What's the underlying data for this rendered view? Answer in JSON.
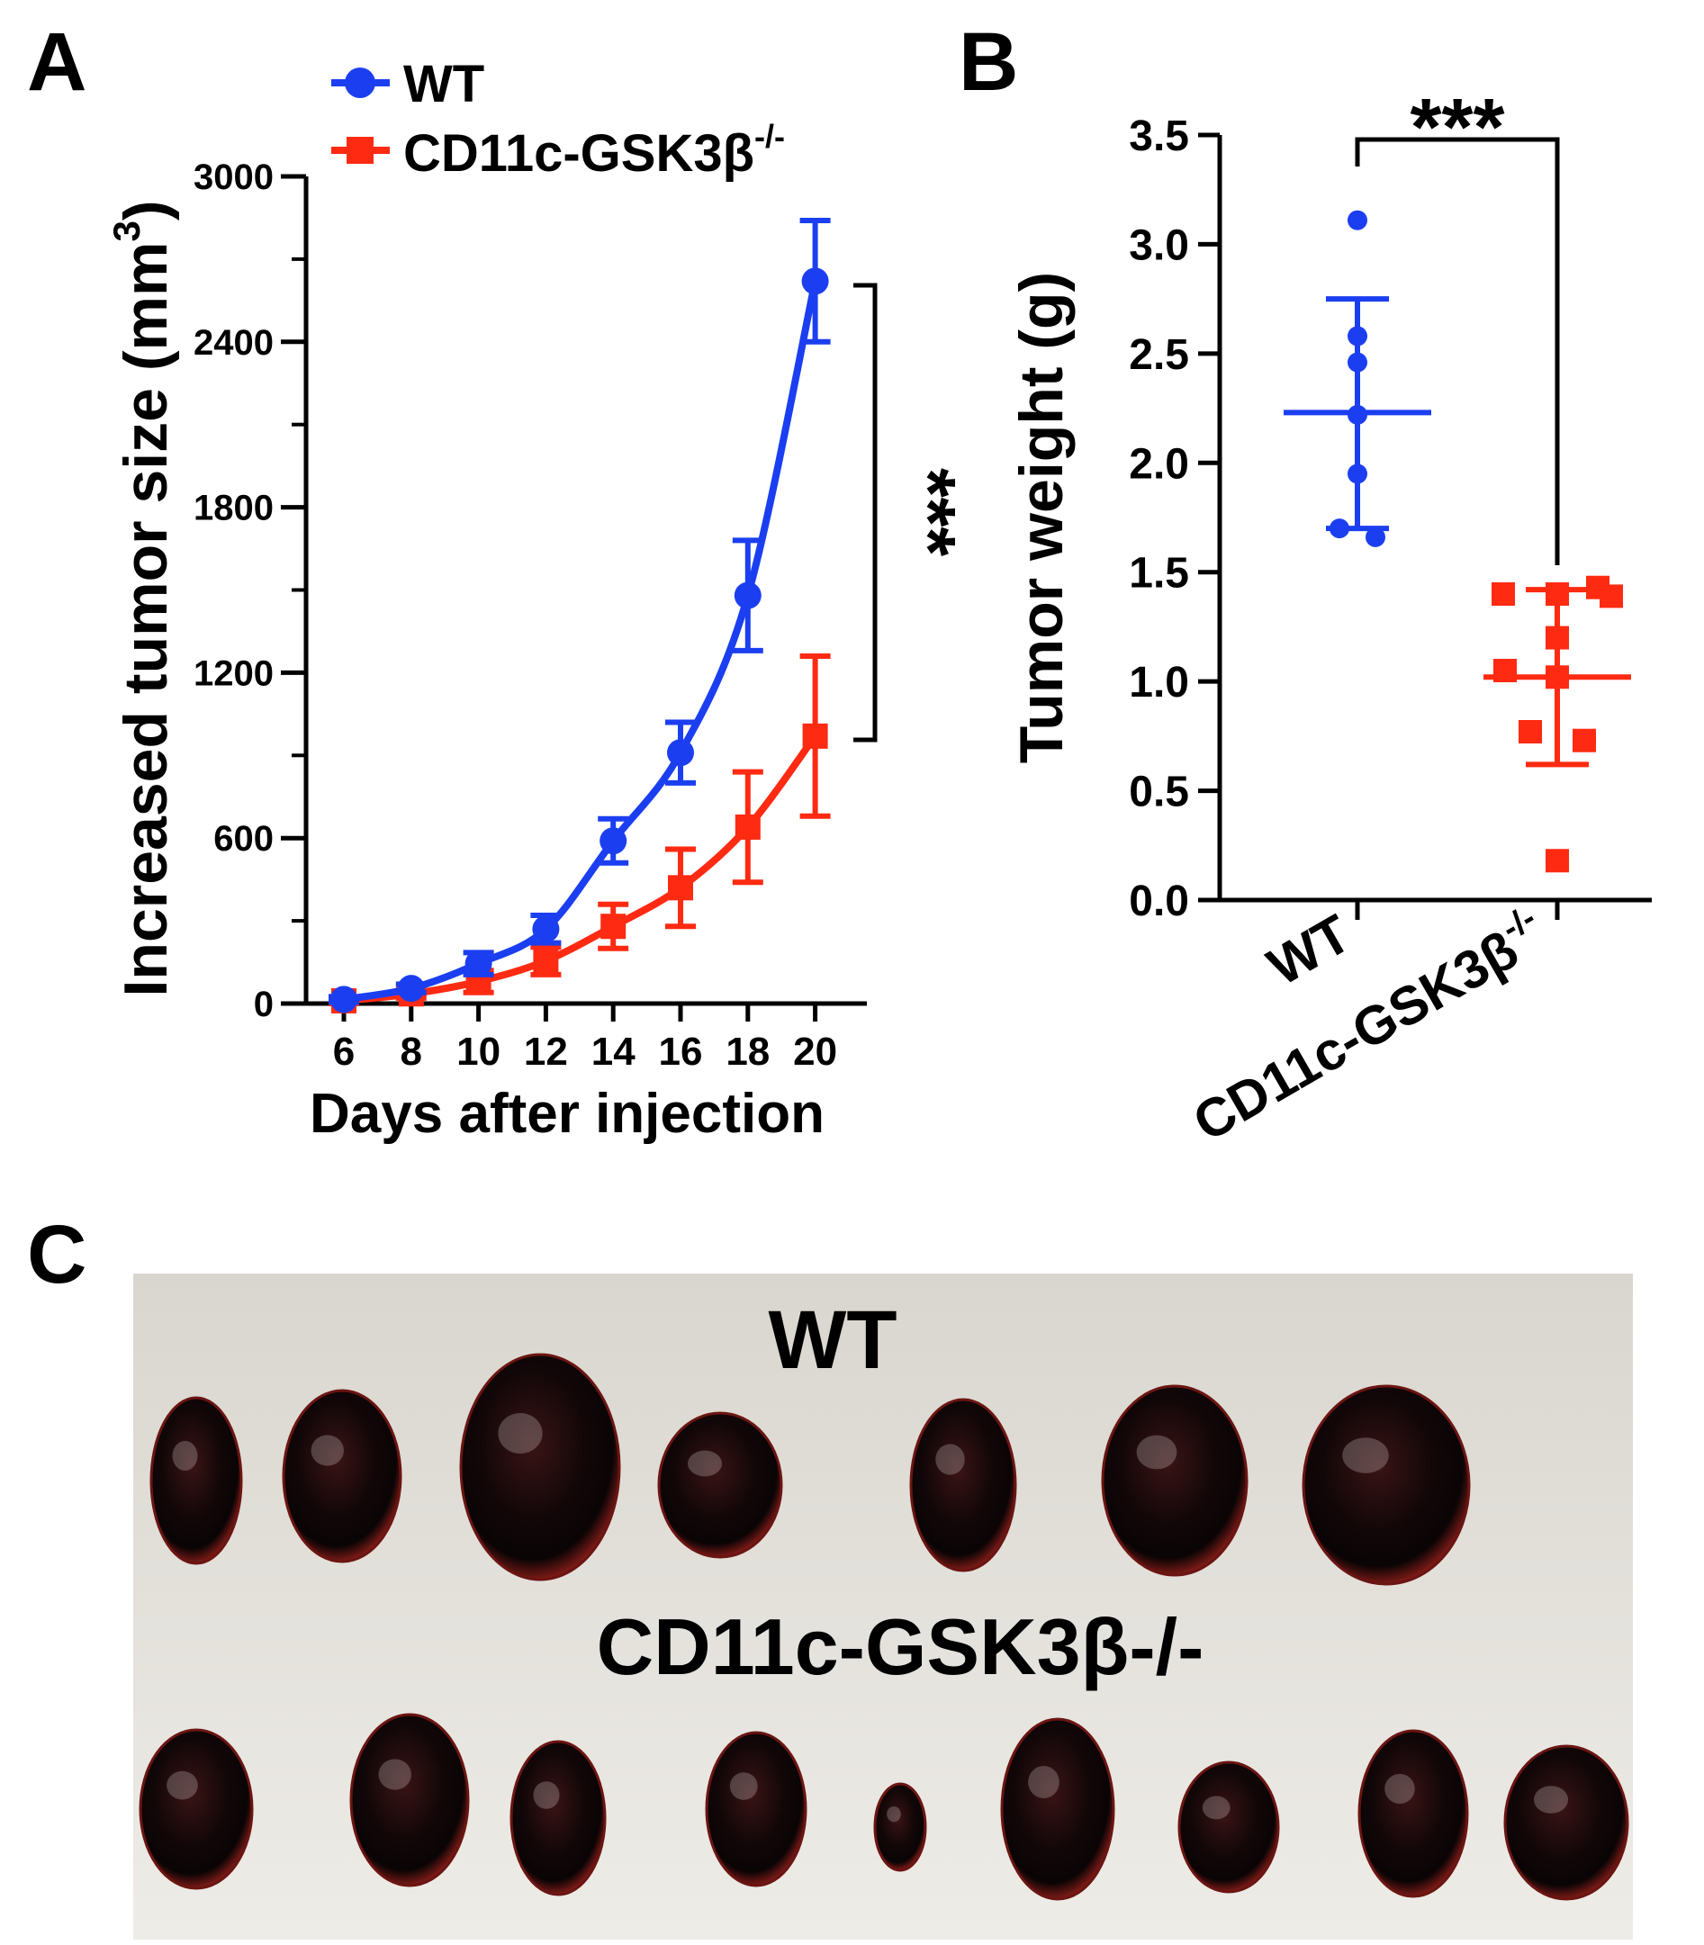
{
  "panels": {
    "a": "A",
    "b": "B",
    "c": "C"
  },
  "colors": {
    "wt": "#1b3ff0",
    "ko": "#ff2a12",
    "axis": "#000000"
  },
  "chart_data": [
    {
      "panel": "A",
      "type": "line",
      "title": "",
      "xlabel": "Days after injection",
      "ylabel": "Increased tumor size (mm³)",
      "ylabel_main": "Increased tumor size (mm",
      "ylabel_sup": "3",
      "ylabel_close": ")",
      "x": [
        6,
        8,
        10,
        12,
        14,
        16,
        18,
        20
      ],
      "x_tick_labels": [
        "6",
        "8",
        "10",
        "12",
        "14",
        "16",
        "18",
        "20"
      ],
      "y_ticks": [
        0,
        600,
        1200,
        1800,
        2400,
        3000
      ],
      "y_tick_labels": [
        "0",
        "600",
        "1200",
        "1800",
        "2400",
        "3000"
      ],
      "ylim": [
        0,
        3000
      ],
      "legend_position": "top-left",
      "series": [
        {
          "name": "WT",
          "legend_label": "WT",
          "values": [
            15,
            55,
            145,
            270,
            590,
            910,
            1480,
            2620
          ],
          "errors": [
            10,
            15,
            40,
            50,
            80,
            110,
            200,
            220
          ]
        },
        {
          "name": "CD11c-GSK3β-/-",
          "legend_main": "CD11c-GSK3β",
          "legend_sup": "-/-",
          "values": [
            10,
            35,
            80,
            155,
            280,
            420,
            640,
            970
          ],
          "errors": [
            10,
            15,
            40,
            50,
            80,
            140,
            200,
            290
          ]
        }
      ],
      "significance": "***"
    },
    {
      "panel": "B",
      "type": "scatter",
      "title": "",
      "xlabel": "",
      "ylabel": "Tumor weight (g)",
      "categories": [
        "WT",
        "CD11c-GSK3β-/-"
      ],
      "category_labels": {
        "wt": "WT",
        "ko_main": "CD11c-GSK3β",
        "ko_sup": "-/-"
      },
      "y_ticks": [
        0.0,
        0.5,
        1.0,
        1.5,
        2.0,
        2.5,
        3.0,
        3.5
      ],
      "y_tick_labels": [
        "0.0",
        "0.5",
        "1.0",
        "1.5",
        "2.0",
        "2.5",
        "3.0",
        "3.5"
      ],
      "ylim": [
        0,
        3.5
      ],
      "series": [
        {
          "name": "WT",
          "points": [
            3.11,
            2.58,
            2.46,
            2.22,
            1.95,
            1.7,
            1.66
          ],
          "mean": 2.23,
          "sd_upper": 2.75,
          "sd_lower": 1.7
        },
        {
          "name": "CD11c-GSK3β-/-",
          "points": [
            1.43,
            1.4,
            1.4,
            1.39,
            1.2,
            1.05,
            1.02,
            0.77,
            0.73,
            0.18
          ],
          "mean": 1.02,
          "sd_upper": 1.42,
          "sd_lower": 0.62
        }
      ],
      "significance": "***"
    }
  ],
  "photo": {
    "label_wt": "WT",
    "label_ko": "CD11c-GSK3β-/-"
  }
}
